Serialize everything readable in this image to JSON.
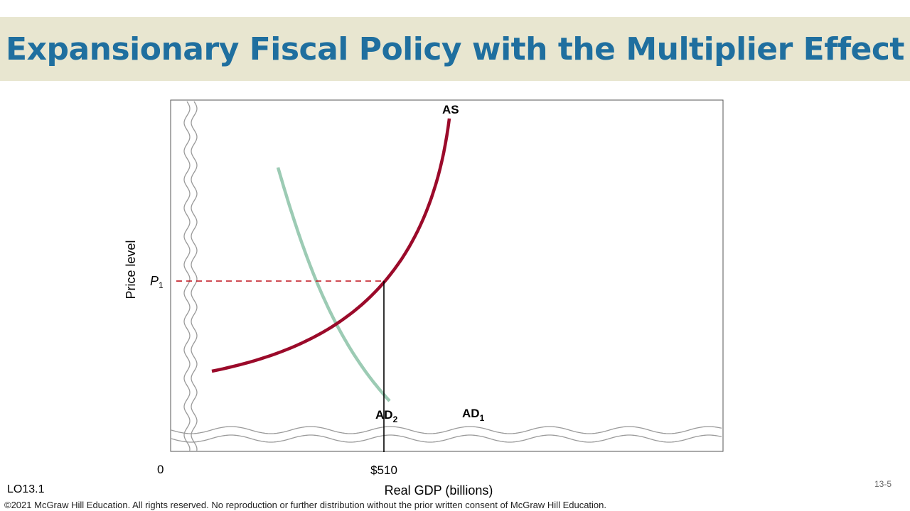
{
  "slide": {
    "title": "Expansionary Fiscal Policy with the Multiplier Effect",
    "learning_objective": "LO13.1",
    "copyright": "©2021 McGraw Hill Education. All rights reserved. No reproduction or further distribution without the prior written consent of McGraw Hill Education.",
    "page_number": "13-5"
  },
  "colors": {
    "title_bar": "#e8e6d0",
    "title_text": "#1f6f9f",
    "as_curve": "#9b0a2a",
    "ad2_curve": "#9ccbb4",
    "p1_dashed": "#c0101a"
  },
  "chart_data": {
    "type": "line",
    "title": "",
    "xlabel": "Real GDP (billions)",
    "ylabel": "Price level",
    "x_origin_label": "0",
    "x_tick_labels": [
      "$510"
    ],
    "y_tick_labels": [
      "P1"
    ],
    "y_tick_main": "P",
    "y_tick_sub": "1",
    "axis_breaks": true,
    "series": [
      {
        "name": "AS",
        "label_main": "AS",
        "label_sub": ""
      },
      {
        "name": "AD2",
        "label_main": "AD",
        "label_sub": "2"
      }
    ],
    "legend_entries": [
      {
        "label_main": "AD",
        "label_sub": "1"
      }
    ],
    "annotations": [
      {
        "type": "dashed-horizontal",
        "at": "P1"
      },
      {
        "type": "solid-vertical",
        "at": "$510"
      }
    ]
  }
}
